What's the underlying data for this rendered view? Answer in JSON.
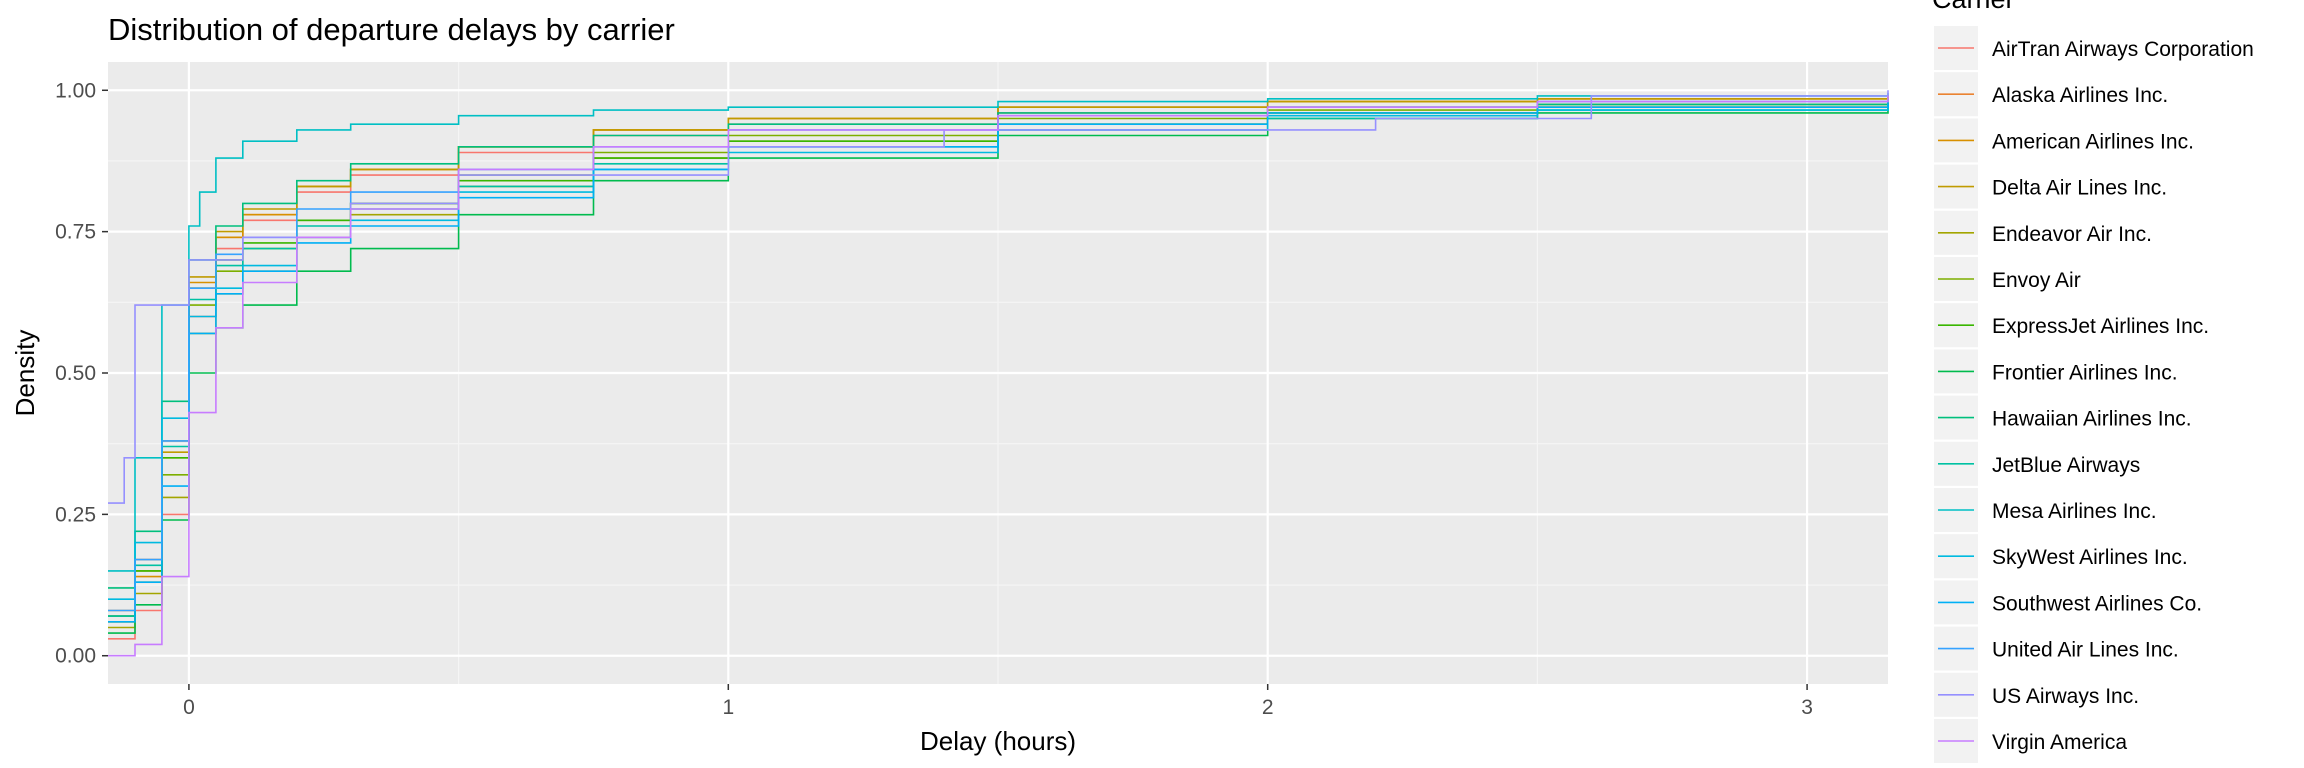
{
  "chart_data": {
    "type": "line",
    "subtype": "empirical cumulative distribution (step)",
    "title": "Distribution of departure delays by carrier",
    "xlabel": "Delay (hours)",
    "ylabel": "Density",
    "xlim": [
      -0.15,
      3.15
    ],
    "ylim": [
      -0.05,
      1.05
    ],
    "x_ticks": [
      0,
      1,
      2,
      3
    ],
    "y_ticks": [
      0.0,
      0.25,
      0.5,
      0.75,
      1.0
    ],
    "x_tick_labels": [
      "0",
      "1",
      "2",
      "3"
    ],
    "y_tick_labels": [
      "0.00",
      "0.25",
      "0.50",
      "0.75",
      "1.00"
    ],
    "grid": true,
    "legend": {
      "title": "Carrier",
      "position": "right"
    },
    "panel_background": "#ebebeb",
    "series": [
      {
        "name": "AirTran Airways Corporation",
        "color": "#F8766D",
        "points": [
          [
            -0.15,
            0.03
          ],
          [
            -0.1,
            0.08
          ],
          [
            -0.05,
            0.25
          ],
          [
            0,
            0.6
          ],
          [
            0.05,
            0.72
          ],
          [
            0.1,
            0.77
          ],
          [
            0.2,
            0.82
          ],
          [
            0.3,
            0.85
          ],
          [
            0.5,
            0.89
          ],
          [
            0.75,
            0.92
          ],
          [
            1.0,
            0.94
          ],
          [
            1.5,
            0.96
          ],
          [
            2.0,
            0.97
          ],
          [
            2.5,
            0.975
          ],
          [
            3.15,
            0.98
          ]
        ]
      },
      {
        "name": "Alaska Airlines Inc.",
        "color": "#EA8331",
        "points": [
          [
            -0.15,
            0.08
          ],
          [
            -0.1,
            0.17
          ],
          [
            -0.05,
            0.38
          ],
          [
            0,
            0.65
          ],
          [
            0.05,
            0.74
          ],
          [
            0.1,
            0.78
          ],
          [
            0.2,
            0.83
          ],
          [
            0.3,
            0.86
          ],
          [
            0.5,
            0.9
          ],
          [
            0.75,
            0.93
          ],
          [
            1.0,
            0.95
          ],
          [
            1.5,
            0.97
          ],
          [
            2.0,
            0.98
          ],
          [
            2.5,
            0.985
          ],
          [
            3.15,
            0.99
          ]
        ]
      },
      {
        "name": "American Airlines Inc.",
        "color": "#D89000",
        "points": [
          [
            -0.15,
            0.06
          ],
          [
            -0.1,
            0.14
          ],
          [
            -0.05,
            0.35
          ],
          [
            0,
            0.66
          ],
          [
            0.05,
            0.74
          ],
          [
            0.1,
            0.78
          ],
          [
            0.2,
            0.83
          ],
          [
            0.3,
            0.86
          ],
          [
            0.5,
            0.9
          ],
          [
            0.75,
            0.93
          ],
          [
            1.0,
            0.95
          ],
          [
            1.5,
            0.97
          ],
          [
            2.0,
            0.98
          ],
          [
            2.5,
            0.985
          ],
          [
            3.15,
            0.99
          ]
        ]
      },
      {
        "name": "Delta Air Lines Inc.",
        "color": "#C09B00",
        "points": [
          [
            -0.15,
            0.07
          ],
          [
            -0.1,
            0.15
          ],
          [
            -0.05,
            0.36
          ],
          [
            0,
            0.67
          ],
          [
            0.05,
            0.75
          ],
          [
            0.1,
            0.79
          ],
          [
            0.2,
            0.83
          ],
          [
            0.3,
            0.86
          ],
          [
            0.5,
            0.9
          ],
          [
            0.75,
            0.93
          ],
          [
            1.0,
            0.95
          ],
          [
            1.5,
            0.97
          ],
          [
            2.0,
            0.98
          ],
          [
            2.5,
            0.985
          ],
          [
            3.15,
            0.99
          ]
        ]
      },
      {
        "name": "Endeavor Air Inc.",
        "color": "#A3A500",
        "points": [
          [
            -0.15,
            0.05
          ],
          [
            -0.1,
            0.11
          ],
          [
            -0.05,
            0.28
          ],
          [
            0,
            0.57
          ],
          [
            0.05,
            0.64
          ],
          [
            0.1,
            0.68
          ],
          [
            0.2,
            0.74
          ],
          [
            0.3,
            0.78
          ],
          [
            0.5,
            0.83
          ],
          [
            0.75,
            0.88
          ],
          [
            1.0,
            0.91
          ],
          [
            1.5,
            0.94
          ],
          [
            2.0,
            0.96
          ],
          [
            2.5,
            0.97
          ],
          [
            3.15,
            0.985
          ]
        ]
      },
      {
        "name": "Envoy Air",
        "color": "#7CAE00",
        "points": [
          [
            -0.15,
            0.06
          ],
          [
            -0.1,
            0.13
          ],
          [
            -0.05,
            0.32
          ],
          [
            0,
            0.62
          ],
          [
            0.05,
            0.68
          ],
          [
            0.1,
            0.72
          ],
          [
            0.2,
            0.77
          ],
          [
            0.3,
            0.8
          ],
          [
            0.5,
            0.85
          ],
          [
            0.75,
            0.89
          ],
          [
            1.0,
            0.92
          ],
          [
            1.5,
            0.95
          ],
          [
            2.0,
            0.965
          ],
          [
            2.5,
            0.975
          ],
          [
            3.15,
            0.985
          ]
        ]
      },
      {
        "name": "ExpressJet Airlines Inc.",
        "color": "#39B600",
        "points": [
          [
            -0.15,
            0.07
          ],
          [
            -0.1,
            0.15
          ],
          [
            -0.05,
            0.35
          ],
          [
            0,
            0.65
          ],
          [
            0.05,
            0.7
          ],
          [
            0.1,
            0.73
          ],
          [
            0.2,
            0.77
          ],
          [
            0.3,
            0.8
          ],
          [
            0.5,
            0.84
          ],
          [
            0.75,
            0.88
          ],
          [
            1.0,
            0.91
          ],
          [
            1.5,
            0.94
          ],
          [
            2.0,
            0.96
          ],
          [
            2.5,
            0.97
          ],
          [
            3.15,
            0.98
          ]
        ]
      },
      {
        "name": "Frontier Airlines Inc.",
        "color": "#00BB4E",
        "points": [
          [
            -0.15,
            0.04
          ],
          [
            -0.1,
            0.09
          ],
          [
            -0.05,
            0.24
          ],
          [
            0,
            0.5
          ],
          [
            0.05,
            0.58
          ],
          [
            0.1,
            0.62
          ],
          [
            0.2,
            0.68
          ],
          [
            0.3,
            0.72
          ],
          [
            0.5,
            0.78
          ],
          [
            0.75,
            0.84
          ],
          [
            1.0,
            0.88
          ],
          [
            1.5,
            0.92
          ],
          [
            2.0,
            0.95
          ],
          [
            2.5,
            0.96
          ],
          [
            3.15,
            0.975
          ]
        ]
      },
      {
        "name": "Hawaiian Airlines Inc.",
        "color": "#00BF7D",
        "points": [
          [
            -0.15,
            0.12
          ],
          [
            -0.1,
            0.22
          ],
          [
            -0.05,
            0.45
          ],
          [
            0,
            0.7
          ],
          [
            0.05,
            0.76
          ],
          [
            0.1,
            0.8
          ],
          [
            0.2,
            0.84
          ],
          [
            0.3,
            0.87
          ],
          [
            0.5,
            0.9
          ],
          [
            0.75,
            0.92
          ],
          [
            1.0,
            0.94
          ],
          [
            1.5,
            0.96
          ],
          [
            2.0,
            0.97
          ],
          [
            2.5,
            0.975
          ],
          [
            3.15,
            0.98
          ]
        ]
      },
      {
        "name": "JetBlue Airways",
        "color": "#00C1A3",
        "points": [
          [
            -0.15,
            0.07
          ],
          [
            -0.1,
            0.16
          ],
          [
            -0.05,
            0.37
          ],
          [
            0,
            0.63
          ],
          [
            0.05,
            0.69
          ],
          [
            0.1,
            0.72
          ],
          [
            0.2,
            0.76
          ],
          [
            0.3,
            0.79
          ],
          [
            0.5,
            0.83
          ],
          [
            0.75,
            0.87
          ],
          [
            1.0,
            0.9
          ],
          [
            1.5,
            0.93
          ],
          [
            2.0,
            0.95
          ],
          [
            2.5,
            0.965
          ],
          [
            3.15,
            0.975
          ]
        ]
      },
      {
        "name": "Mesa Airlines Inc.",
        "color": "#00BFC4",
        "points": [
          [
            -0.15,
            0.15
          ],
          [
            -0.1,
            0.35
          ],
          [
            -0.05,
            0.62
          ],
          [
            0,
            0.76
          ],
          [
            0.02,
            0.82
          ],
          [
            0.05,
            0.88
          ],
          [
            0.1,
            0.91
          ],
          [
            0.2,
            0.93
          ],
          [
            0.3,
            0.94
          ],
          [
            0.5,
            0.955
          ],
          [
            0.75,
            0.965
          ],
          [
            1.0,
            0.97
          ],
          [
            1.5,
            0.98
          ],
          [
            2.0,
            0.985
          ],
          [
            2.5,
            0.99
          ],
          [
            3.15,
            0.995
          ]
        ]
      },
      {
        "name": "SkyWest Airlines Inc.",
        "color": "#00BAE0",
        "points": [
          [
            -0.15,
            0.1
          ],
          [
            -0.1,
            0.2
          ],
          [
            -0.05,
            0.42
          ],
          [
            0,
            0.6
          ],
          [
            0.05,
            0.65
          ],
          [
            0.1,
            0.69
          ],
          [
            0.2,
            0.74
          ],
          [
            0.3,
            0.77
          ],
          [
            0.5,
            0.82
          ],
          [
            0.75,
            0.86
          ],
          [
            1.0,
            0.89
          ],
          [
            1.5,
            0.93
          ],
          [
            2.0,
            0.955
          ],
          [
            2.5,
            0.965
          ],
          [
            3.15,
            0.975
          ]
        ]
      },
      {
        "name": "Southwest Airlines Co.",
        "color": "#00B0F6",
        "points": [
          [
            -0.15,
            0.06
          ],
          [
            -0.1,
            0.13
          ],
          [
            -0.05,
            0.3
          ],
          [
            0,
            0.57
          ],
          [
            0.05,
            0.64
          ],
          [
            0.1,
            0.68
          ],
          [
            0.2,
            0.73
          ],
          [
            0.3,
            0.76
          ],
          [
            0.5,
            0.81
          ],
          [
            0.75,
            0.86
          ],
          [
            1.0,
            0.9
          ],
          [
            1.5,
            0.94
          ],
          [
            2.0,
            0.96
          ],
          [
            2.5,
            0.97
          ],
          [
            3.15,
            0.98
          ]
        ]
      },
      {
        "name": "United Air Lines Inc.",
        "color": "#35A2FF",
        "points": [
          [
            -0.15,
            0.08
          ],
          [
            -0.1,
            0.17
          ],
          [
            -0.05,
            0.38
          ],
          [
            0,
            0.65
          ],
          [
            0.05,
            0.71
          ],
          [
            0.1,
            0.74
          ],
          [
            0.2,
            0.79
          ],
          [
            0.3,
            0.82
          ],
          [
            0.5,
            0.86
          ],
          [
            0.75,
            0.9
          ],
          [
            1.0,
            0.93
          ],
          [
            1.5,
            0.955
          ],
          [
            2.0,
            0.97
          ],
          [
            2.5,
            0.98
          ],
          [
            3.15,
            0.985
          ]
        ]
      },
      {
        "name": "US Airways Inc.",
        "color": "#9590FF",
        "points": [
          [
            -0.15,
            0.27
          ],
          [
            -0.12,
            0.35
          ],
          [
            -0.1,
            0.62
          ],
          [
            0,
            0.7
          ],
          [
            0.1,
            0.74
          ],
          [
            0.3,
            0.8
          ],
          [
            0.5,
            0.85
          ],
          [
            1.0,
            0.9
          ],
          [
            1.4,
            0.93
          ],
          [
            2.2,
            0.95
          ],
          [
            2.6,
            0.99
          ],
          [
            3.15,
            1.0
          ]
        ]
      },
      {
        "name": "Virgin America",
        "color": "#C77CFF",
        "points": [
          [
            -0.15,
            0.0
          ],
          [
            -0.1,
            0.02
          ],
          [
            -0.05,
            0.14
          ],
          [
            0,
            0.43
          ],
          [
            0.05,
            0.58
          ],
          [
            0.1,
            0.66
          ],
          [
            0.2,
            0.74
          ],
          [
            0.3,
            0.79
          ],
          [
            0.5,
            0.86
          ],
          [
            0.75,
            0.9
          ],
          [
            1.0,
            0.93
          ],
          [
            1.5,
            0.955
          ],
          [
            2.0,
            0.97
          ],
          [
            2.5,
            0.98
          ],
          [
            3.15,
            0.99
          ]
        ]
      }
    ]
  }
}
